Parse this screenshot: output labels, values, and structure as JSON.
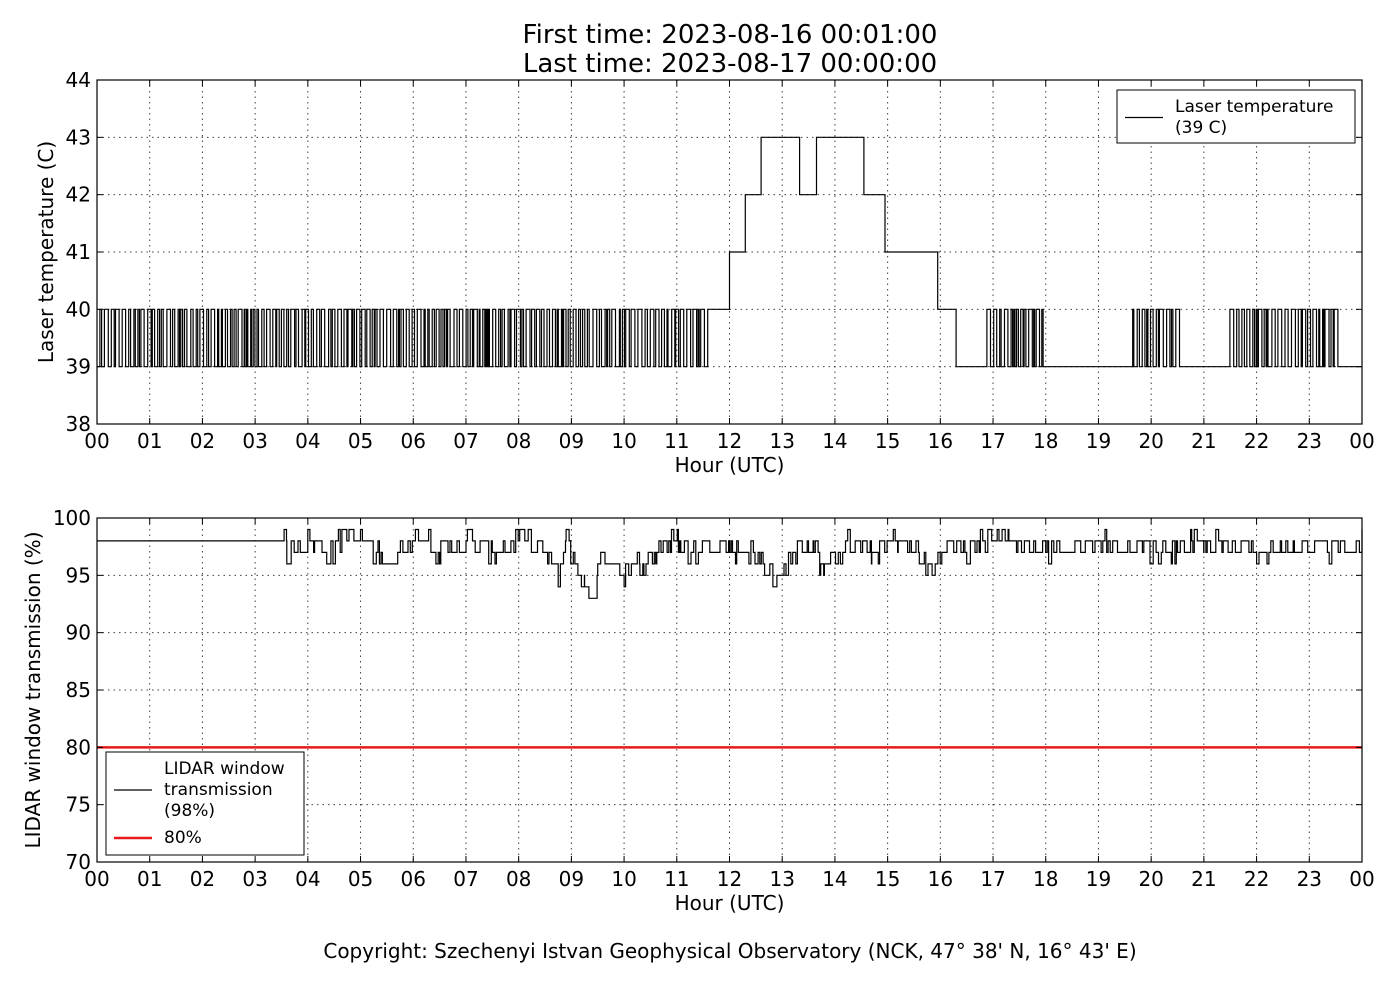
{
  "header": {
    "title_line1": "First time: 2023-08-16 00:01:00",
    "title_line2": "Last time: 2023-08-17 00:00:00"
  },
  "footer": {
    "copyright": "Copyright: Szechenyi Istvan Geophysical Observatory (NCK, 47° 38' N, 16° 43' E)"
  },
  "chart_data": [
    {
      "type": "line",
      "xlabel": "Hour (UTC)",
      "ylabel": "Laser temperature (C)",
      "xlim": [
        0,
        24
      ],
      "ylim": [
        38,
        44
      ],
      "x_ticks": [
        "00",
        "01",
        "02",
        "03",
        "04",
        "05",
        "06",
        "07",
        "08",
        "09",
        "10",
        "11",
        "12",
        "13",
        "14",
        "15",
        "16",
        "17",
        "18",
        "19",
        "20",
        "21",
        "22",
        "23",
        "00"
      ],
      "y_ticks": [
        "38",
        "39",
        "40",
        "41",
        "42",
        "43",
        "44"
      ],
      "grid": true,
      "legend_position": "top-right",
      "series": [
        {
          "name": "Laser temperature (39 C)",
          "legend_lines": [
            "Laser temperature",
            "(39 C)"
          ],
          "color": "#000000",
          "step_segments": [
            {
              "x0": 0.0,
              "x1": 11.6,
              "alternate": [
                39,
                40
              ]
            },
            {
              "x0": 11.6,
              "x1": 12.0,
              "value": 40
            },
            {
              "x0": 12.0,
              "x1": 12.3,
              "value": 41
            },
            {
              "x0": 12.3,
              "x1": 12.6,
              "value": 42
            },
            {
              "x0": 12.6,
              "x1": 13.33,
              "value": 43
            },
            {
              "x0": 13.33,
              "x1": 13.65,
              "value": 42
            },
            {
              "x0": 13.65,
              "x1": 14.55,
              "value": 43
            },
            {
              "x0": 14.55,
              "x1": 14.95,
              "value": 42
            },
            {
              "x0": 14.95,
              "x1": 15.95,
              "value": 41
            },
            {
              "x0": 15.95,
              "x1": 16.3,
              "value": 40
            },
            {
              "x0": 16.3,
              "x1": 16.85,
              "value": 39
            },
            {
              "x0": 16.85,
              "x1": 17.95,
              "alternate": [
                39,
                40
              ]
            },
            {
              "x0": 17.95,
              "x1": 19.6,
              "value": 39
            },
            {
              "x0": 19.6,
              "x1": 20.55,
              "alternate": [
                39,
                40
              ]
            },
            {
              "x0": 20.55,
              "x1": 21.45,
              "value": 39
            },
            {
              "x0": 21.45,
              "x1": 23.55,
              "alternate": [
                39,
                40
              ]
            },
            {
              "x0": 23.55,
              "x1": 24.0,
              "value": 39
            }
          ]
        }
      ]
    },
    {
      "type": "line",
      "xlabel": "Hour (UTC)",
      "ylabel": "LIDAR window transmission (%)",
      "xlim": [
        0,
        24
      ],
      "ylim": [
        70,
        100
      ],
      "x_ticks": [
        "00",
        "01",
        "02",
        "03",
        "04",
        "05",
        "06",
        "07",
        "08",
        "09",
        "10",
        "11",
        "12",
        "13",
        "14",
        "15",
        "16",
        "17",
        "18",
        "19",
        "20",
        "21",
        "22",
        "23",
        "00"
      ],
      "y_ticks": [
        "70",
        "75",
        "80",
        "85",
        "90",
        "95",
        "100"
      ],
      "grid": true,
      "legend_position": "bottom-left",
      "series": [
        {
          "name": "LIDAR window transmission (98%)",
          "legend_lines": [
            "LIDAR window",
            "transmission",
            "(98%)"
          ],
          "color": "#000000",
          "points": [
            [
              0,
              98
            ],
            [
              3.55,
              98
            ],
            [
              3.6,
              97
            ],
            [
              4.0,
              98
            ],
            [
              4.5,
              97
            ],
            [
              4.7,
              99
            ],
            [
              5.0,
              98
            ],
            [
              5.3,
              97
            ],
            [
              5.6,
              96
            ],
            [
              5.9,
              98
            ],
            [
              6.1,
              99
            ],
            [
              6.5,
              97
            ],
            [
              7.0,
              98
            ],
            [
              7.5,
              97
            ],
            [
              8.0,
              98
            ],
            [
              8.5,
              97
            ],
            [
              8.75,
              95
            ],
            [
              8.9,
              98
            ],
            [
              9.1,
              96
            ],
            [
              9.25,
              94
            ],
            [
              9.4,
              93
            ],
            [
              9.5,
              96
            ],
            [
              9.7,
              97
            ],
            [
              10.0,
              95
            ],
            [
              10.3,
              96
            ],
            [
              10.6,
              97
            ],
            [
              10.9,
              98
            ],
            [
              11.3,
              97
            ],
            [
              11.8,
              98
            ],
            [
              12.3,
              97
            ],
            [
              12.7,
              96
            ],
            [
              12.9,
              94
            ],
            [
              13.2,
              97
            ],
            [
              13.6,
              98
            ],
            [
              13.8,
              95
            ],
            [
              14.2,
              98
            ],
            [
              14.7,
              97
            ],
            [
              15.2,
              98
            ],
            [
              15.6,
              97
            ],
            [
              15.85,
              95
            ],
            [
              16.1,
              98
            ],
            [
              16.5,
              97
            ],
            [
              17.05,
              99
            ],
            [
              17.3,
              98
            ],
            [
              18.0,
              97
            ],
            [
              19.0,
              98
            ],
            [
              20.0,
              97
            ],
            [
              21.0,
              98
            ],
            [
              22.0,
              97
            ],
            [
              23.0,
              98
            ],
            [
              23.7,
              97
            ],
            [
              24.0,
              98
            ]
          ]
        },
        {
          "name": "80%",
          "legend_lines": [
            "80%"
          ],
          "color": "#e8191b",
          "constant": 80
        }
      ]
    }
  ]
}
